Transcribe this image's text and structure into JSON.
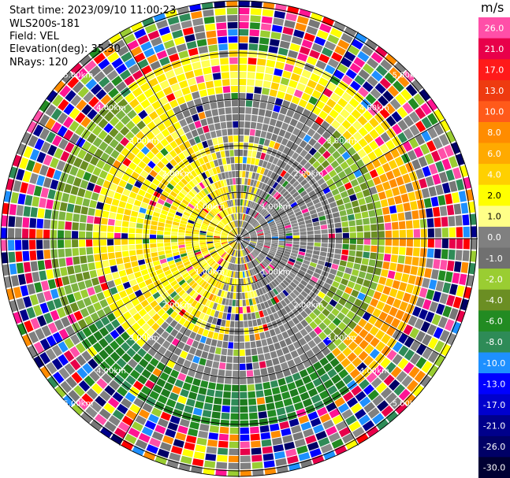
{
  "header": {
    "start_time": "Start time: 2023/09/10 11:00:23",
    "instrument": "WLS200s-181",
    "field": "Field: VEL",
    "elevation": "Elevation(deg): 35.30",
    "nrays": "NRays: 120"
  },
  "colorbar": {
    "title": "m/s",
    "ticks": [
      "26.0",
      "21.0",
      "17.0",
      "13.0",
      "10.0",
      "8.0",
      "6.0",
      "4.0",
      "2.0",
      "1.0",
      "0.0",
      "-1.0",
      "-2.0",
      "-4.0",
      "-6.0",
      "-8.0",
      "-10.0",
      "-13.0",
      "-17.0",
      "-21.0",
      "-26.0",
      "-30.0"
    ],
    "colors": [
      "#ff4fa8",
      "#e8004a",
      "#ff1a1a",
      "#ee3b10",
      "#ff5a1a",
      "#ff8c00",
      "#ffaa00",
      "#ffd000",
      "#ffff00",
      "#ffff88",
      "#808080",
      "#707070",
      "#9acd32",
      "#6b8e23",
      "#228b22",
      "#2e8b57",
      "#1e90ff",
      "#0000ff",
      "#0000cd",
      "#00008b",
      "#000066",
      "#000033"
    ]
  },
  "chart_data": {
    "type": "ppi",
    "field": "VEL",
    "units": "m/s",
    "nrays": 120,
    "range_rings_km": [
      1.0,
      2.0,
      3.0,
      4.0,
      5.0
    ],
    "ring_labels": [
      "1.00km",
      "2.00km",
      "3.00km",
      "4.00km",
      "5.00km"
    ],
    "spokes_deg": [
      0,
      30,
      60,
      90,
      120,
      150,
      180,
      210,
      240,
      270,
      300,
      330
    ]
  }
}
